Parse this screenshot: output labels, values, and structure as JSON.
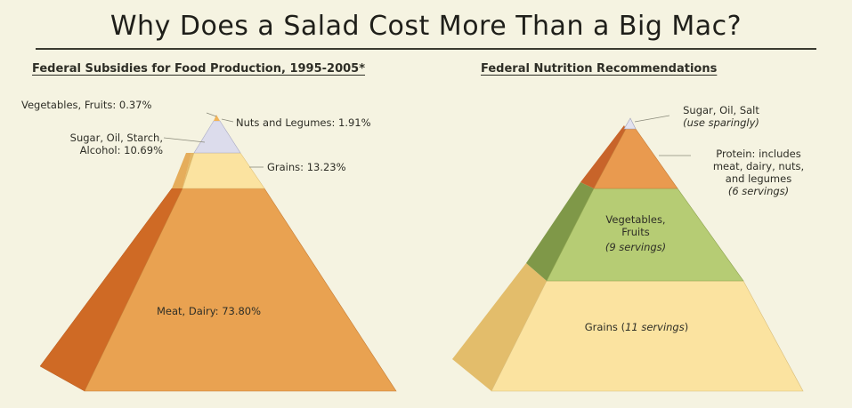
{
  "title": "Why Does a Salad Cost More Than a Big Mac?",
  "left": {
    "subtitle": "Federal Subsidies for Food Production, 1995-2005*",
    "labels": {
      "vegetables_fruits": "Vegetables, Fruits: 0.37%",
      "nuts_legumes": "Nuts and Legumes: 1.91%",
      "sugar_line1": "Sugar, Oil, Starch,",
      "sugar_line2": "Alcohol: 10.69%",
      "grains": "Grains: 13.23%",
      "meat_dairy": "Meat, Dairy: 73.80%"
    }
  },
  "right": {
    "subtitle": "Federal Nutrition Recommendations",
    "labels": {
      "sugar": "Sugar, Oil, Salt",
      "sugar_note": "(use sparingly)",
      "protein_1": "Protein:  includes",
      "protein_2": "meat, dairy, nuts,",
      "protein_3": "and legumes",
      "protein_note": "(6 servings)",
      "veg_1": "Vegetables,",
      "veg_2": "Fruits",
      "veg_note": "(9 servings)",
      "grains_a": "Grains (",
      "grains_b": "11 servings",
      "grains_c": ")"
    }
  },
  "colors": {
    "background": "#f5f3e1",
    "meat_front": "#e9a251",
    "meat_side": "#cf6a25",
    "grains_front": "#fbe3a0",
    "grains_side": "#e3b765",
    "sugar_front": "#e1b56b",
    "nuts_front": "#dcdcec",
    "veg_tip": "#f1b45a",
    "protein_front": "#e99a4f",
    "protein_side": "#c8642a",
    "vegfruit_front": "#b6cc74",
    "vegfruit_side": "#7f9848",
    "rec_sugar": "#e2e2ef"
  }
}
